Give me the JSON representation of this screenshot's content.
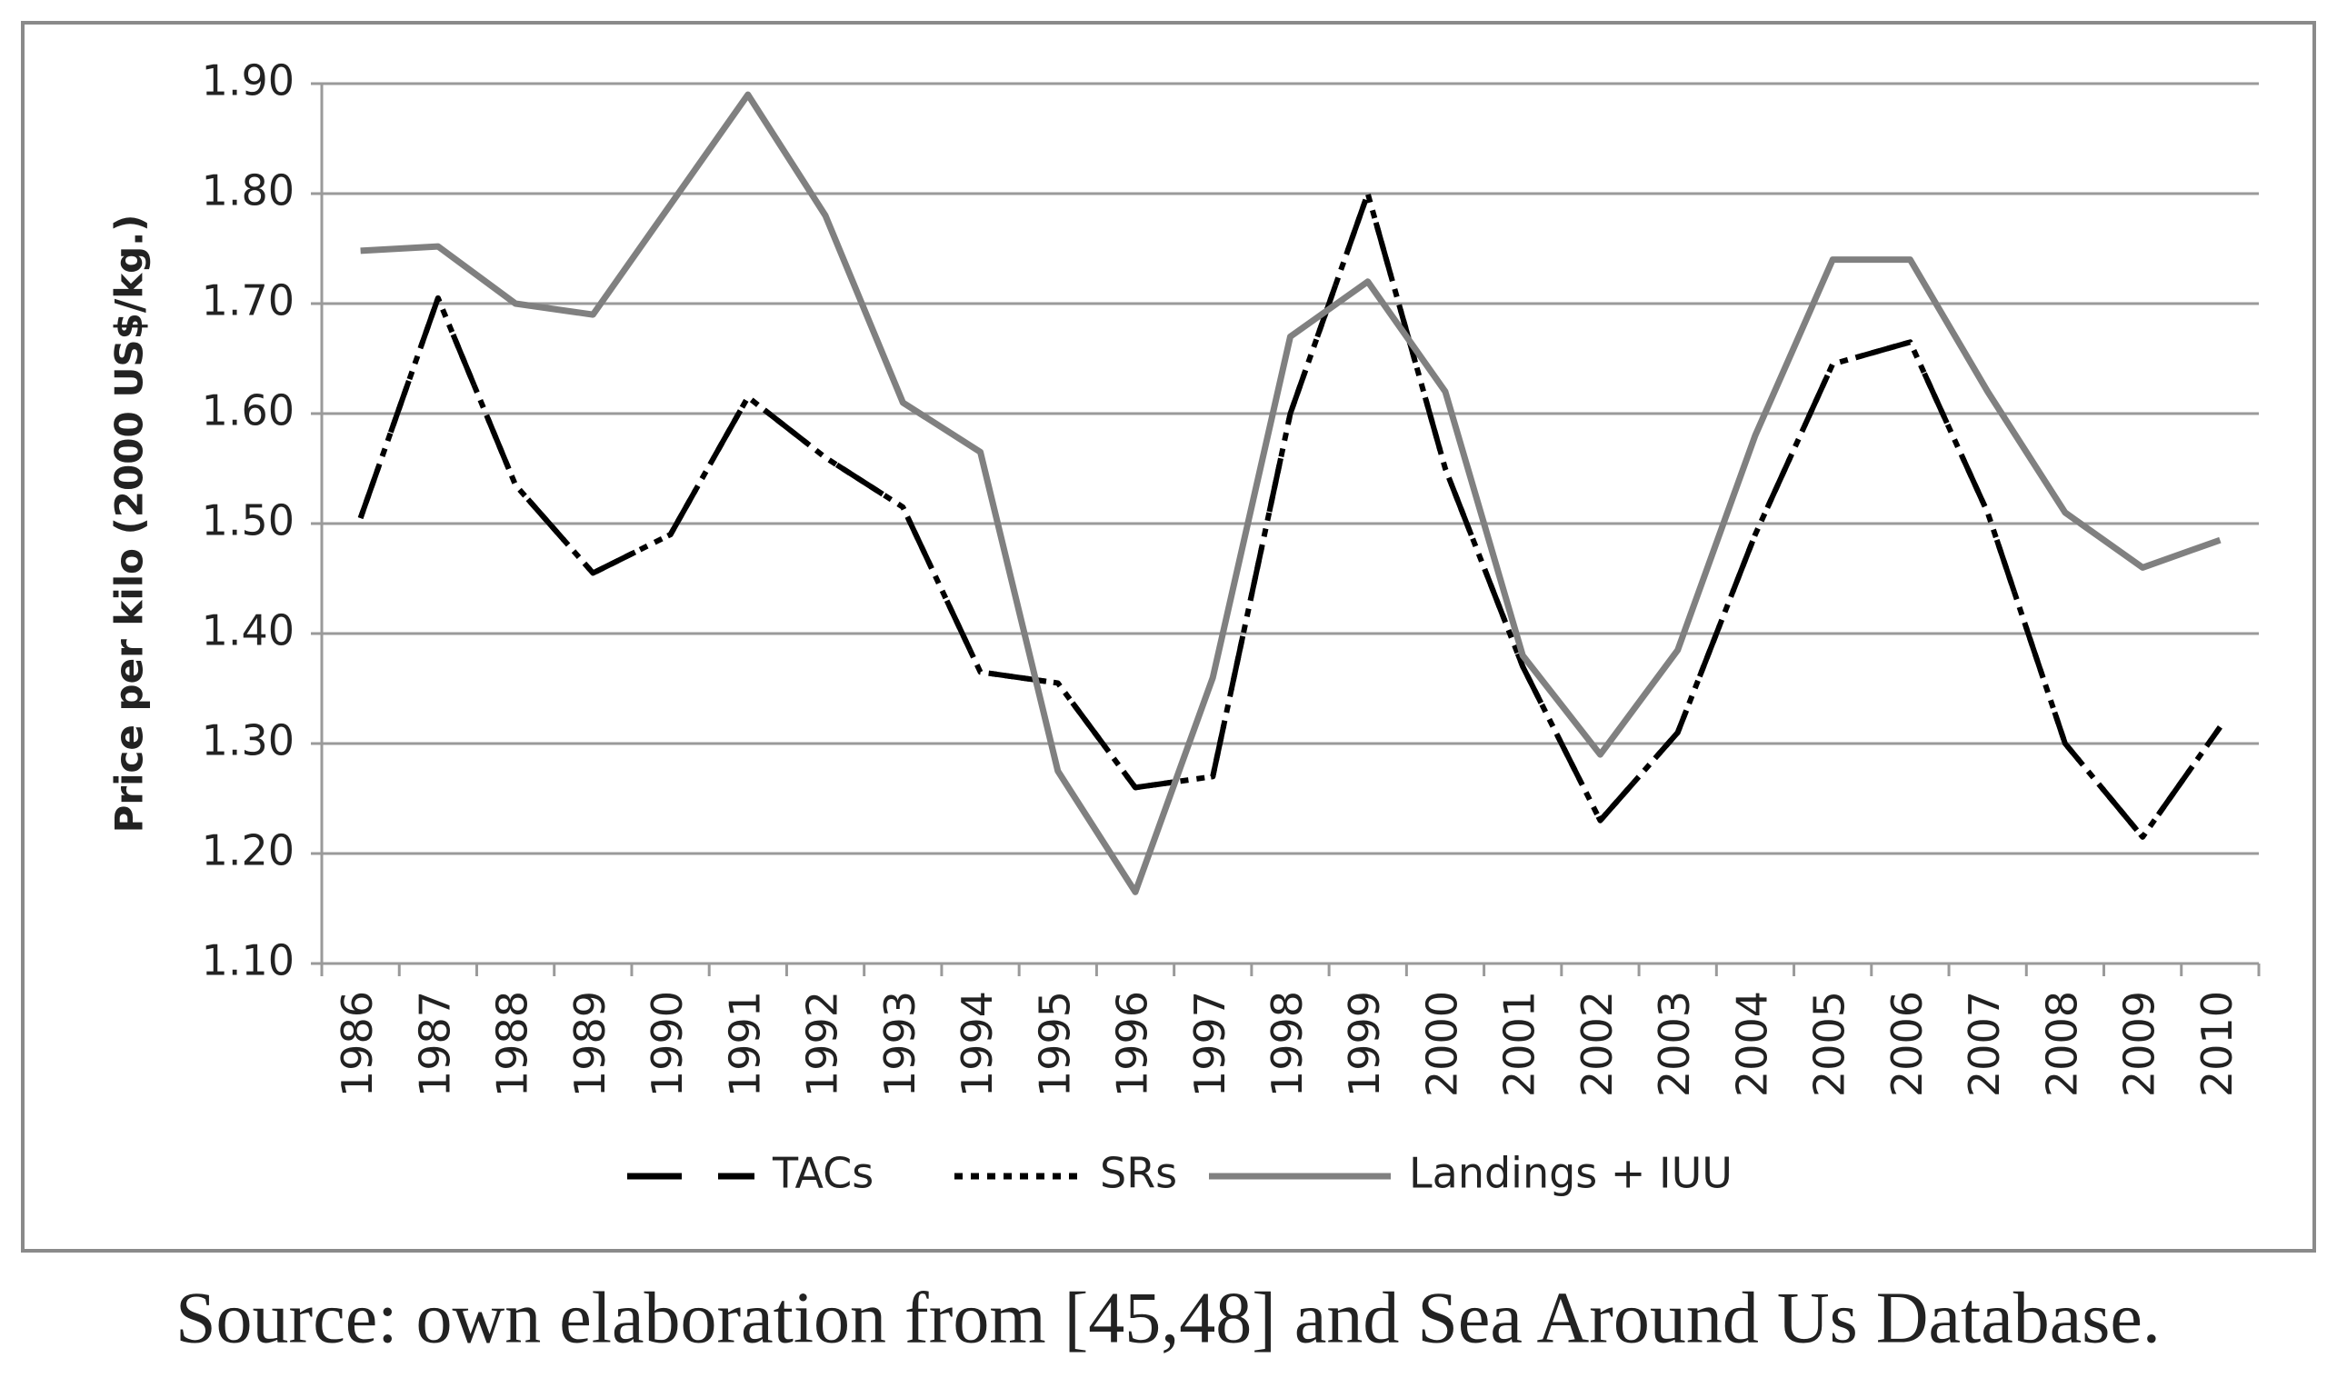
{
  "chart_data": {
    "type": "line",
    "y_label": "Price per kilo (2000 US$/kg.)",
    "source": "Source: own elaboration from [45,48] and Sea Around Us Database.",
    "categories": [
      "1986",
      "1987",
      "1988",
      "1989",
      "1990",
      "1991",
      "1992",
      "1993",
      "1994",
      "1995",
      "1996",
      "1997",
      "1998",
      "1999",
      "2000",
      "2001",
      "2002",
      "2003",
      "2004",
      "2005",
      "2006",
      "2007",
      "2008",
      "2009",
      "2010"
    ],
    "series": [
      {
        "name": "TACs",
        "color": "#000000",
        "dash": "long-dash",
        "values": [
          1.505,
          1.705,
          1.535,
          1.455,
          1.49,
          1.615,
          1.56,
          1.515,
          1.365,
          1.355,
          1.26,
          1.27,
          1.6,
          1.8,
          1.55,
          1.37,
          1.23,
          1.31,
          1.49,
          1.645,
          1.665,
          1.51,
          1.3,
          1.215,
          1.315
        ]
      },
      {
        "name": "SRs",
        "color": "#000000",
        "dash": "dotted",
        "values": [
          1.505,
          1.705,
          1.535,
          1.455,
          1.49,
          1.615,
          1.56,
          1.515,
          1.365,
          1.355,
          1.26,
          1.27,
          1.6,
          1.8,
          1.55,
          1.37,
          1.23,
          1.31,
          1.49,
          1.645,
          1.665,
          1.51,
          1.3,
          1.215,
          1.315
        ]
      },
      {
        "name": "Landings + IUU",
        "color": "#808080",
        "dash": "solid",
        "values": [
          1.748,
          1.752,
          1.7,
          1.69,
          1.79,
          1.89,
          1.78,
          1.61,
          1.565,
          1.275,
          1.165,
          1.36,
          1.67,
          1.72,
          1.62,
          1.38,
          1.29,
          1.385,
          1.58,
          1.74,
          1.74,
          1.62,
          1.51,
          1.46,
          1.485
        ]
      }
    ],
    "ylim": [
      1.1,
      1.9
    ],
    "yticks": [
      {
        "value": 1.1,
        "label": "1.10"
      },
      {
        "value": 1.2,
        "label": "1.20"
      },
      {
        "value": 1.3,
        "label": "1.30"
      },
      {
        "value": 1.4,
        "label": "1.40"
      },
      {
        "value": 1.5,
        "label": "1.50"
      },
      {
        "value": 1.6,
        "label": "1.60"
      },
      {
        "value": 1.7,
        "label": "1.70"
      },
      {
        "value": 1.8,
        "label": "1.80"
      },
      {
        "value": 1.9,
        "label": "1.90"
      }
    ],
    "grid": true,
    "legend": "bottom"
  }
}
